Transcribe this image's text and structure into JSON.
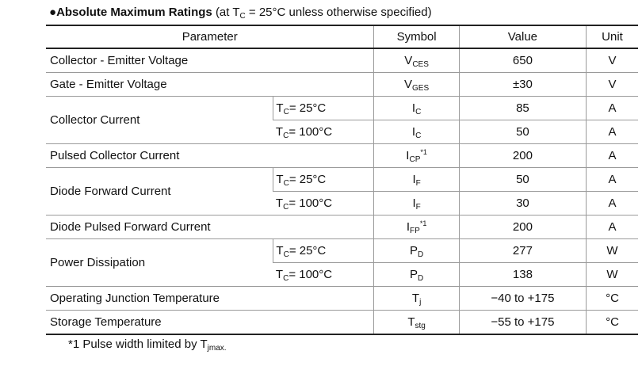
{
  "header": {
    "bullet": "●",
    "title": "Absolute Maximum Ratings",
    "condition_prefix": "(at T",
    "condition_sub": "C",
    "condition_suffix": " = 25°C unless otherwise specified)"
  },
  "table": {
    "columns": [
      "Parameter",
      "Symbol",
      "Value",
      "Unit"
    ],
    "groups": [
      {
        "parameter": "Collector - Emitter Voltage",
        "rows": [
          {
            "symbol": {
              "main": "V",
              "sub": "CES"
            },
            "value": "650",
            "unit": "V"
          }
        ]
      },
      {
        "parameter": "Gate - Emitter Voltage",
        "rows": [
          {
            "symbol": {
              "main": "V",
              "sub": "GES"
            },
            "value": "±30",
            "unit": "V"
          }
        ]
      },
      {
        "parameter": "Collector Current",
        "rows": [
          {
            "condition": {
              "main": "T",
              "sub": "C",
              "rest": "= 25°C"
            },
            "symbol": {
              "main": "I",
              "sub": "C"
            },
            "value": "85",
            "unit": "A"
          },
          {
            "condition": {
              "main": "T",
              "sub": "C",
              "rest": "= 100°C"
            },
            "symbol": {
              "main": "I",
              "sub": "C"
            },
            "value": "50",
            "unit": "A"
          }
        ]
      },
      {
        "parameter": "Pulsed Collector Current",
        "rows": [
          {
            "symbol": {
              "main": "I",
              "sub": "CP",
              "sup": "*1"
            },
            "value": "200",
            "unit": "A"
          }
        ]
      },
      {
        "parameter": "Diode Forward Current",
        "rows": [
          {
            "condition": {
              "main": "T",
              "sub": "C",
              "rest": "= 25°C"
            },
            "symbol": {
              "main": "I",
              "sub": "F"
            },
            "value": "50",
            "unit": "A"
          },
          {
            "condition": {
              "main": "T",
              "sub": "C",
              "rest": "= 100°C"
            },
            "symbol": {
              "main": "I",
              "sub": "F"
            },
            "value": "30",
            "unit": "A"
          }
        ]
      },
      {
        "parameter": "Diode Pulsed Forward Current",
        "rows": [
          {
            "symbol": {
              "main": "I",
              "sub": "FP",
              "sup": "*1"
            },
            "value": "200",
            "unit": "A"
          }
        ]
      },
      {
        "parameter": "Power Dissipation",
        "rows": [
          {
            "condition": {
              "main": "T",
              "sub": "C",
              "rest": "= 25°C"
            },
            "symbol": {
              "main": "P",
              "sub": "D"
            },
            "value": "277",
            "unit": "W"
          },
          {
            "condition": {
              "main": "T",
              "sub": "C",
              "rest": "= 100°C"
            },
            "symbol": {
              "main": "P",
              "sub": "D"
            },
            "value": "138",
            "unit": "W"
          }
        ]
      },
      {
        "parameter": "Operating Junction Temperature",
        "rows": [
          {
            "symbol": {
              "main": "T",
              "sub": "j"
            },
            "value": "−40 to +175",
            "unit": "°C"
          }
        ]
      },
      {
        "parameter": "Storage Temperature",
        "rows": [
          {
            "symbol": {
              "main": "T",
              "sub": "stg"
            },
            "value": "−55 to +175",
            "unit": "°C"
          }
        ]
      }
    ]
  },
  "footnote": {
    "text": "*1 Pulse width limited by T",
    "sub": "jmax."
  }
}
